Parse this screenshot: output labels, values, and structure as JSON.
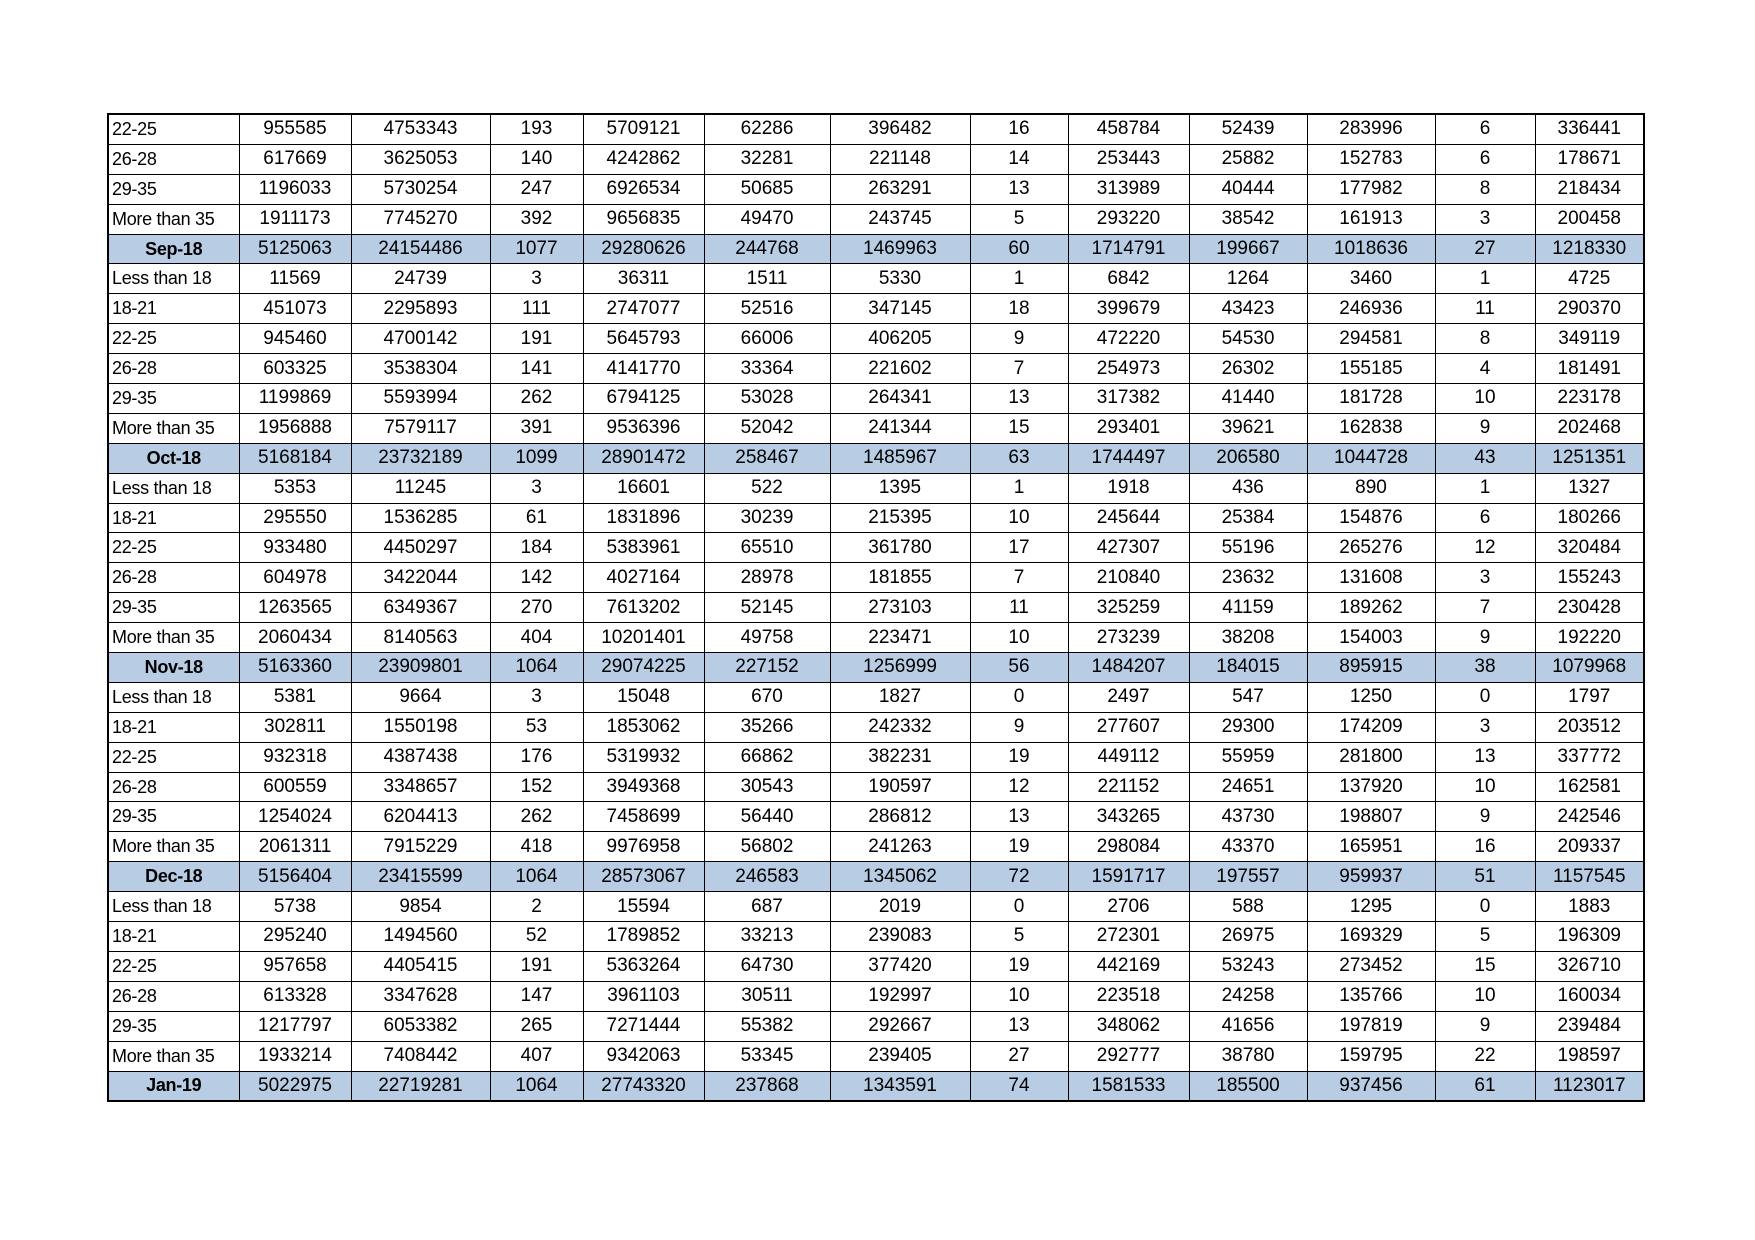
{
  "colors": {
    "month_row_bg": "#b8cce4",
    "border": "#000000"
  },
  "rows": [
    {
      "type": "age",
      "cells": [
        "22-25",
        "955585",
        "4753343",
        "193",
        "5709121",
        "62286",
        "396482",
        "16",
        "458784",
        "52439",
        "283996",
        "6",
        "336441"
      ]
    },
    {
      "type": "age",
      "cells": [
        "26-28",
        "617669",
        "3625053",
        "140",
        "4242862",
        "32281",
        "221148",
        "14",
        "253443",
        "25882",
        "152783",
        "6",
        "178671"
      ]
    },
    {
      "type": "age",
      "cells": [
        "29-35",
        "1196033",
        "5730254",
        "247",
        "6926534",
        "50685",
        "263291",
        "13",
        "313989",
        "40444",
        "177982",
        "8",
        "218434"
      ]
    },
    {
      "type": "age",
      "cells": [
        "More than 35",
        "1911173",
        "7745270",
        "392",
        "9656835",
        "49470",
        "243745",
        "5",
        "293220",
        "38542",
        "161913",
        "3",
        "200458"
      ]
    },
    {
      "type": "month",
      "cells": [
        "Sep-18",
        "5125063",
        "24154486",
        "1077",
        "29280626",
        "244768",
        "1469963",
        "60",
        "1714791",
        "199667",
        "1018636",
        "27",
        "1218330"
      ]
    },
    {
      "type": "age",
      "cells": [
        "Less than 18",
        "11569",
        "24739",
        "3",
        "36311",
        "1511",
        "5330",
        "1",
        "6842",
        "1264",
        "3460",
        "1",
        "4725"
      ]
    },
    {
      "type": "age",
      "cells": [
        "18-21",
        "451073",
        "2295893",
        "111",
        "2747077",
        "52516",
        "347145",
        "18",
        "399679",
        "43423",
        "246936",
        "11",
        "290370"
      ]
    },
    {
      "type": "age",
      "cells": [
        "22-25",
        "945460",
        "4700142",
        "191",
        "5645793",
        "66006",
        "406205",
        "9",
        "472220",
        "54530",
        "294581",
        "8",
        "349119"
      ]
    },
    {
      "type": "age",
      "cells": [
        "26-28",
        "603325",
        "3538304",
        "141",
        "4141770",
        "33364",
        "221602",
        "7",
        "254973",
        "26302",
        "155185",
        "4",
        "181491"
      ]
    },
    {
      "type": "age",
      "cells": [
        "29-35",
        "1199869",
        "5593994",
        "262",
        "6794125",
        "53028",
        "264341",
        "13",
        "317382",
        "41440",
        "181728",
        "10",
        "223178"
      ]
    },
    {
      "type": "age",
      "cells": [
        "More than 35",
        "1956888",
        "7579117",
        "391",
        "9536396",
        "52042",
        "241344",
        "15",
        "293401",
        "39621",
        "162838",
        "9",
        "202468"
      ]
    },
    {
      "type": "month",
      "cells": [
        "Oct-18",
        "5168184",
        "23732189",
        "1099",
        "28901472",
        "258467",
        "1485967",
        "63",
        "1744497",
        "206580",
        "1044728",
        "43",
        "1251351"
      ]
    },
    {
      "type": "age",
      "cells": [
        "Less than 18",
        "5353",
        "11245",
        "3",
        "16601",
        "522",
        "1395",
        "1",
        "1918",
        "436",
        "890",
        "1",
        "1327"
      ]
    },
    {
      "type": "age",
      "cells": [
        "18-21",
        "295550",
        "1536285",
        "61",
        "1831896",
        "30239",
        "215395",
        "10",
        "245644",
        "25384",
        "154876",
        "6",
        "180266"
      ]
    },
    {
      "type": "age",
      "cells": [
        "22-25",
        "933480",
        "4450297",
        "184",
        "5383961",
        "65510",
        "361780",
        "17",
        "427307",
        "55196",
        "265276",
        "12",
        "320484"
      ]
    },
    {
      "type": "age",
      "cells": [
        "26-28",
        "604978",
        "3422044",
        "142",
        "4027164",
        "28978",
        "181855",
        "7",
        "210840",
        "23632",
        "131608",
        "3",
        "155243"
      ]
    },
    {
      "type": "age",
      "cells": [
        "29-35",
        "1263565",
        "6349367",
        "270",
        "7613202",
        "52145",
        "273103",
        "11",
        "325259",
        "41159",
        "189262",
        "7",
        "230428"
      ]
    },
    {
      "type": "age",
      "cells": [
        "More than 35",
        "2060434",
        "8140563",
        "404",
        "10201401",
        "49758",
        "223471",
        "10",
        "273239",
        "38208",
        "154003",
        "9",
        "192220"
      ]
    },
    {
      "type": "month",
      "cells": [
        "Nov-18",
        "5163360",
        "23909801",
        "1064",
        "29074225",
        "227152",
        "1256999",
        "56",
        "1484207",
        "184015",
        "895915",
        "38",
        "1079968"
      ]
    },
    {
      "type": "age",
      "cells": [
        "Less than 18",
        "5381",
        "9664",
        "3",
        "15048",
        "670",
        "1827",
        "0",
        "2497",
        "547",
        "1250",
        "0",
        "1797"
      ]
    },
    {
      "type": "age",
      "cells": [
        "18-21",
        "302811",
        "1550198",
        "53",
        "1853062",
        "35266",
        "242332",
        "9",
        "277607",
        "29300",
        "174209",
        "3",
        "203512"
      ]
    },
    {
      "type": "age",
      "cells": [
        "22-25",
        "932318",
        "4387438",
        "176",
        "5319932",
        "66862",
        "382231",
        "19",
        "449112",
        "55959",
        "281800",
        "13",
        "337772"
      ]
    },
    {
      "type": "age",
      "cells": [
        "26-28",
        "600559",
        "3348657",
        "152",
        "3949368",
        "30543",
        "190597",
        "12",
        "221152",
        "24651",
        "137920",
        "10",
        "162581"
      ]
    },
    {
      "type": "age",
      "cells": [
        "29-35",
        "1254024",
        "6204413",
        "262",
        "7458699",
        "56440",
        "286812",
        "13",
        "343265",
        "43730",
        "198807",
        "9",
        "242546"
      ]
    },
    {
      "type": "age",
      "cells": [
        "More than 35",
        "2061311",
        "7915229",
        "418",
        "9976958",
        "56802",
        "241263",
        "19",
        "298084",
        "43370",
        "165951",
        "16",
        "209337"
      ]
    },
    {
      "type": "month",
      "cells": [
        "Dec-18",
        "5156404",
        "23415599",
        "1064",
        "28573067",
        "246583",
        "1345062",
        "72",
        "1591717",
        "197557",
        "959937",
        "51",
        "1157545"
      ]
    },
    {
      "type": "age",
      "cells": [
        "Less than 18",
        "5738",
        "9854",
        "2",
        "15594",
        "687",
        "2019",
        "0",
        "2706",
        "588",
        "1295",
        "0",
        "1883"
      ]
    },
    {
      "type": "age",
      "cells": [
        "18-21",
        "295240",
        "1494560",
        "52",
        "1789852",
        "33213",
        "239083",
        "5",
        "272301",
        "26975",
        "169329",
        "5",
        "196309"
      ]
    },
    {
      "type": "age",
      "cells": [
        "22-25",
        "957658",
        "4405415",
        "191",
        "5363264",
        "64730",
        "377420",
        "19",
        "442169",
        "53243",
        "273452",
        "15",
        "326710"
      ]
    },
    {
      "type": "age",
      "cells": [
        "26-28",
        "613328",
        "3347628",
        "147",
        "3961103",
        "30511",
        "192997",
        "10",
        "223518",
        "24258",
        "135766",
        "10",
        "160034"
      ]
    },
    {
      "type": "age",
      "cells": [
        "29-35",
        "1217797",
        "6053382",
        "265",
        "7271444",
        "55382",
        "292667",
        "13",
        "348062",
        "41656",
        "197819",
        "9",
        "239484"
      ]
    },
    {
      "type": "age",
      "cells": [
        "More than 35",
        "1933214",
        "7408442",
        "407",
        "9342063",
        "53345",
        "239405",
        "27",
        "292777",
        "38780",
        "159795",
        "22",
        "198597"
      ]
    },
    {
      "type": "month",
      "cells": [
        "Jan-19",
        "5022975",
        "22719281",
        "1064",
        "27743320",
        "237868",
        "1343591",
        "74",
        "1581533",
        "185500",
        "937456",
        "61",
        "1123017"
      ]
    }
  ]
}
